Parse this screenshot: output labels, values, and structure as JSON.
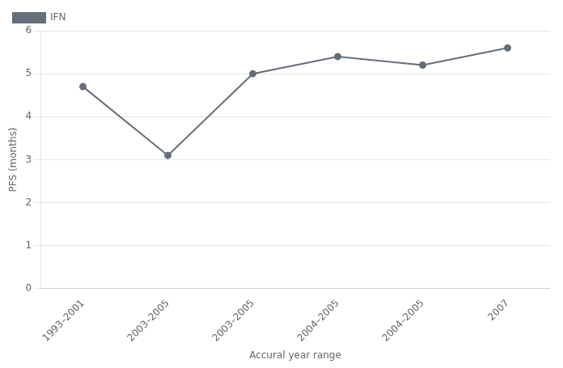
{
  "chart_data": {
    "type": "line",
    "categories": [
      "1993–2001",
      "2003–2005",
      "2003–2005",
      "2004–2005",
      "2004–2005",
      "2007"
    ],
    "series": [
      {
        "name": "IFN",
        "color": "#666e7a",
        "marker": "circle",
        "values": [
          4.7,
          3.1,
          5.0,
          5.4,
          5.2,
          5.6
        ]
      }
    ],
    "xlabel": "Accural year range",
    "ylabel": "PFS (months)",
    "ylim": [
      0,
      6
    ],
    "yticks": [
      0,
      1,
      2,
      3,
      4,
      5,
      6
    ],
    "grid": "y",
    "legend": "upper left"
  }
}
